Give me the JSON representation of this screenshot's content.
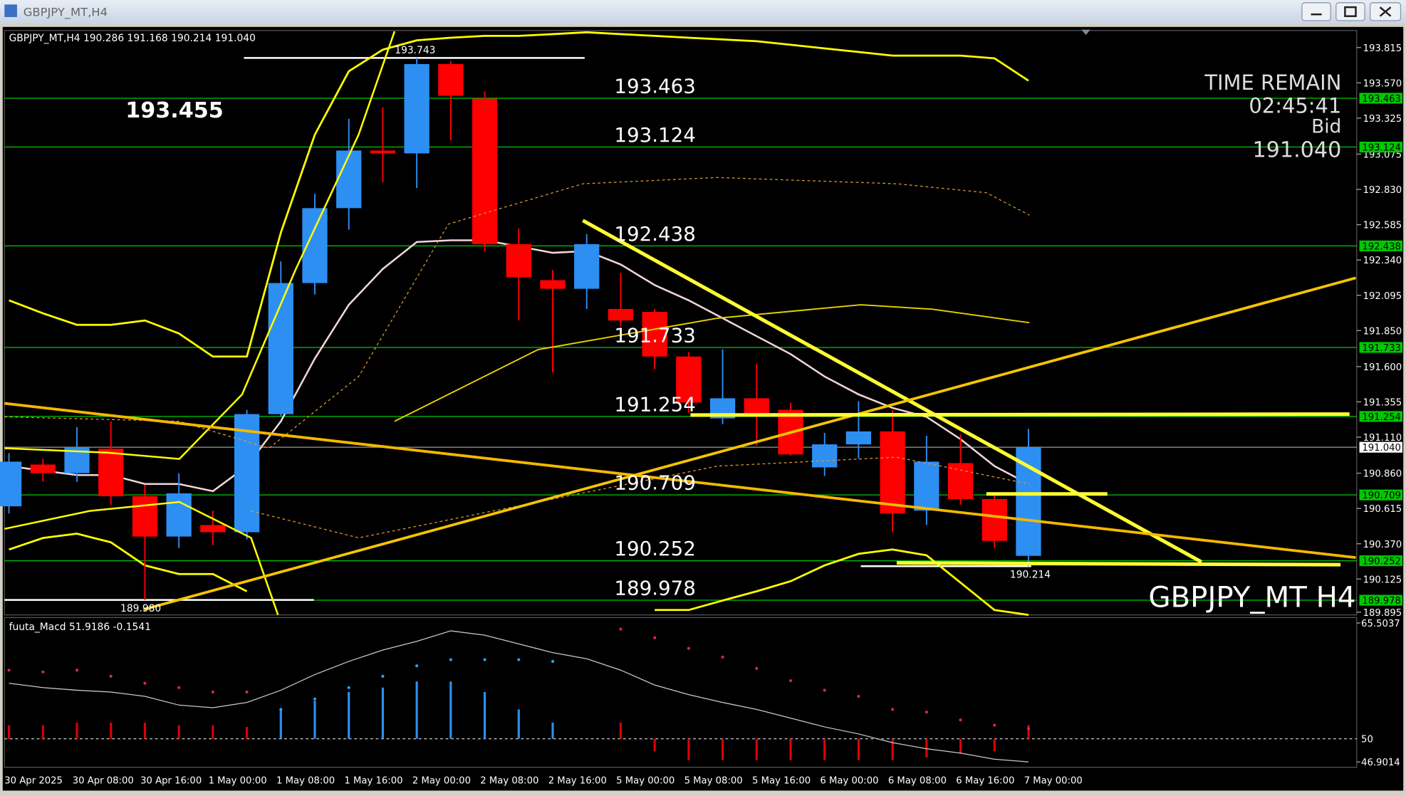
{
  "chart_data": {
    "type": "candlestick",
    "window_title": "GBPJPY_MT,H4",
    "header": "GBPJPY_MT,H4  190.286 191.168 190.214 191.040",
    "big_label": "193.455",
    "timer": {
      "title": "TIME REMAIN",
      "time": "02:45:41",
      "bid_label": "Bid",
      "bid": "191.040"
    },
    "watermark": "GBPJPY_MT H4",
    "categories": [
      "30 Apr 2025",
      null,
      "30 Apr 08:00",
      null,
      "30 Apr 16:00",
      null,
      "1 May 00:00",
      null,
      "1 May 08:00",
      null,
      "1 May 16:00",
      null,
      "2 May 00:00",
      null,
      "2 May 08:00",
      null,
      "2 May 16:00",
      null,
      "5 May 00:00",
      null,
      "5 May 08:00",
      null,
      "5 May 16:00",
      null,
      "6 May 00:00",
      null,
      "6 May 08:00",
      null,
      "6 May 16:00",
      null,
      "7 May 00:00"
    ],
    "open": [
      190.63,
      190.92,
      190.86,
      191.03,
      190.7,
      190.42,
      190.5,
      190.45,
      191.27,
      192.18,
      192.7,
      193.1,
      193.08,
      193.7,
      193.46,
      192.45,
      192.2,
      192.14,
      192.0,
      191.98,
      191.67,
      191.24,
      191.38,
      191.3,
      190.9,
      191.06,
      191.15,
      190.6,
      190.93,
      190.68,
      190.286
    ],
    "high": [
      191.0,
      190.96,
      191.18,
      191.22,
      190.78,
      190.86,
      190.6,
      191.3,
      192.33,
      192.8,
      193.32,
      193.4,
      193.743,
      193.72,
      193.51,
      192.56,
      192.27,
      192.52,
      192.25,
      192.0,
      191.7,
      191.72,
      191.62,
      191.35,
      191.14,
      191.36,
      191.3,
      191.12,
      191.13,
      190.72,
      191.168
    ],
    "low": [
      190.58,
      190.8,
      190.8,
      190.64,
      189.98,
      190.34,
      190.36,
      190.4,
      191.25,
      192.1,
      192.55,
      192.88,
      192.84,
      193.17,
      192.4,
      191.92,
      191.56,
      192.0,
      191.88,
      191.58,
      191.28,
      191.2,
      191.05,
      190.98,
      190.84,
      190.96,
      190.45,
      190.5,
      190.64,
      190.34,
      190.214
    ],
    "close": [
      190.94,
      190.86,
      191.04,
      190.7,
      190.42,
      190.72,
      190.45,
      191.27,
      192.18,
      192.7,
      193.1,
      193.08,
      193.7,
      193.48,
      192.45,
      192.22,
      192.14,
      192.45,
      191.92,
      191.67,
      191.35,
      191.38,
      191.27,
      190.99,
      191.06,
      191.15,
      190.58,
      190.94,
      190.68,
      190.39,
      191.04
    ],
    "up_color": "#2e8ff2",
    "down_color": "#ff0000",
    "indicators": [
      {
        "name": "upper",
        "color": "#ffff00",
        "values": [
          192.06,
          191.97,
          191.89,
          191.89,
          191.92,
          191.83,
          191.67,
          191.67,
          192.53,
          193.21,
          193.65,
          193.8,
          193.865,
          193.883,
          193.896,
          193.896,
          193.908,
          193.921,
          193.908,
          193.896,
          193.883,
          193.871,
          193.859,
          193.834,
          193.809,
          193.784,
          193.759,
          193.759,
          193.759,
          193.74,
          193.585
        ]
      },
      {
        "name": "lower",
        "color": "#ffff00",
        "values": [
          190.33,
          190.41,
          190.44,
          190.38,
          190.22,
          190.16,
          190.16,
          190.04,
          null,
          null,
          null,
          null,
          null,
          null,
          null,
          null,
          null,
          null,
          null,
          189.91,
          189.91,
          189.976,
          190.04,
          190.11,
          190.22,
          190.3,
          190.33,
          190.29,
          190.1,
          189.91,
          189.876
        ]
      },
      {
        "name": "ma",
        "color": "#f2d6d6",
        "values": [
          190.909,
          190.878,
          190.847,
          190.847,
          190.785,
          190.785,
          190.735,
          190.909,
          191.22,
          191.656,
          192.029,
          192.278,
          192.465,
          192.477,
          192.477,
          192.434,
          192.39,
          192.402,
          192.309,
          192.166,
          192.06,
          191.936,
          191.811,
          191.687,
          191.531,
          191.407,
          191.313,
          191.251,
          191.096,
          190.909,
          190.785
        ]
      }
    ],
    "levels": [
      193.463,
      193.124,
      192.438,
      191.733,
      191.254,
      190.709,
      190.252,
      189.978
    ],
    "level_color": "#00c800",
    "marked_prices": [
      {
        "label": "193.743",
        "value": 193.743
      },
      {
        "label": "189.980",
        "value": 189.98
      },
      {
        "label": "190.214",
        "value": 190.214
      }
    ],
    "ylim": [
      189.876,
      193.927
    ],
    "yticks": [
      193.815,
      {
        "value": 193.57,
        "label": "193.570"
      },
      193.325,
      193.075,
      {
        "value": 192.83,
        "label": "192.830"
      },
      192.585,
      {
        "value": 192.34,
        "label": "192.340"
      },
      192.095,
      {
        "value": 191.85,
        "label": "191.850"
      },
      {
        "value": 191.6,
        "label": "191.600"
      },
      191.355,
      {
        "value": 191.11,
        "label": "191.110"
      },
      {
        "value": 190.86,
        "label": "190.860"
      },
      190.615,
      {
        "value": 190.37,
        "label": "190.370"
      },
      190.125,
      189.895
    ],
    "macd": {
      "header": "fuuta_Macd 51.9186 -0.1541",
      "ylim": [
        46.9014,
        65.5037
      ],
      "yticks": [
        65.5037,
        50,
        46.9014
      ],
      "base": 50,
      "histogram": [
        51.82,
        51.82,
        52.17,
        52.17,
        52.17,
        51.82,
        51.82,
        51.59,
        53.93,
        55.09,
        56.26,
        56.85,
        57.67,
        57.67,
        56.26,
        53.93,
        52.17,
        50,
        52.17,
        48.31,
        47.14,
        47.14,
        47.14,
        47.14,
        47.14,
        47.14,
        47.14,
        47.49,
        48.08,
        48.31,
        51.82
      ],
      "histogram_colors": [
        "#e00000",
        "#e00000",
        "#e00000",
        "#e00000",
        "#e00000",
        "#e00000",
        "#e00000",
        "#e00000",
        "#2e8ff2",
        "#2e8ff2",
        "#2e8ff2",
        "#2e8ff2",
        "#2e8ff2",
        "#2e8ff2",
        "#2e8ff2",
        "#2e8ff2",
        "#2e8ff2",
        "#2e8ff2",
        "#e00000",
        "#e00000",
        "#e00000",
        "#e00000",
        "#e00000",
        "#e00000",
        "#e00000",
        "#e00000",
        "#e00000",
        "#e00000",
        "#e00000",
        "#e00000",
        "#e00000"
      ],
      "signal": [
        59.19,
        58.95,
        59.19,
        58.37,
        57.43,
        56.85,
        56.26,
        56.26,
        53.93,
        55.33,
        56.85,
        58.37,
        59.77,
        60.59,
        60.59,
        60.59,
        60.36,
        null,
        64.68,
        63.52,
        62.11,
        60.94,
        59.42,
        57.78,
        56.5,
        55.68,
        53.93,
        53.57,
        52.52,
        51.82,
        51.35
      ],
      "signal_colors": [
        "#e0206a",
        "#e0206a",
        "#e0206a",
        "#e0206a",
        "#e0206a",
        "#e0206a",
        "#e0206a",
        "#e0206a",
        "#2aa7f0",
        "#2aa7f0",
        "#2aa7f0",
        "#2aa7f0",
        "#2aa7f0",
        "#2aa7f0",
        "#2aa7f0",
        "#2aa7f0",
        "#2aa7f0",
        "#2aa7f0",
        "#e0206a",
        "#e0206a",
        "#e0206a",
        "#e0206a",
        "#e0206a",
        "#e0206a",
        "#e0206a",
        "#e0206a",
        "#e0206a",
        "#e0206a",
        "#e0206a",
        "#e0206a",
        "#e0206a"
      ],
      "line": [
        57.43,
        56.85,
        56.5,
        56.26,
        55.68,
        54.51,
        54.16,
        54.86,
        56.5,
        58.6,
        60.36,
        61.88,
        63.05,
        64.45,
        63.87,
        62.7,
        61.53,
        60.71,
        59.19,
        57.2,
        55.91,
        54.86,
        53.93,
        52.76,
        51.59,
        50.65,
        49.48,
        48.66,
        48.08,
        47.26,
        46.9
      ],
      "line_color": "#c8c8c8"
    }
  }
}
